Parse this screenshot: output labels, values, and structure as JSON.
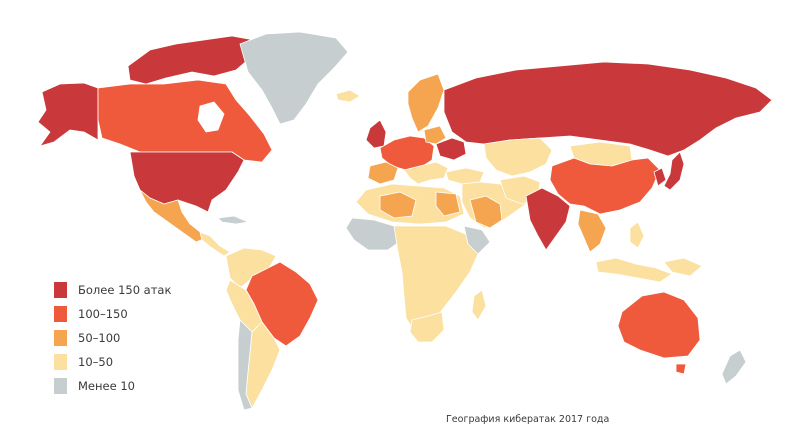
{
  "colors": {
    "tier_150_plus": "#c9383a",
    "tier_100_150": "#ef5a3d",
    "tier_50_100": "#f5a450",
    "tier_10_50": "#fbe0a0",
    "tier_under_10": "#c7ced0"
  },
  "legend": [
    {
      "label": "Более 150 атак",
      "tier": "tier_150_plus"
    },
    {
      "label": "100–150",
      "tier": "tier_100_150"
    },
    {
      "label": "50–100",
      "tier": "tier_50_100"
    },
    {
      "label": "10–50",
      "tier": "tier_10_50"
    },
    {
      "label": "Менее 10",
      "tier": "tier_under_10"
    }
  ],
  "caption": "География кибератак 2017 года"
}
